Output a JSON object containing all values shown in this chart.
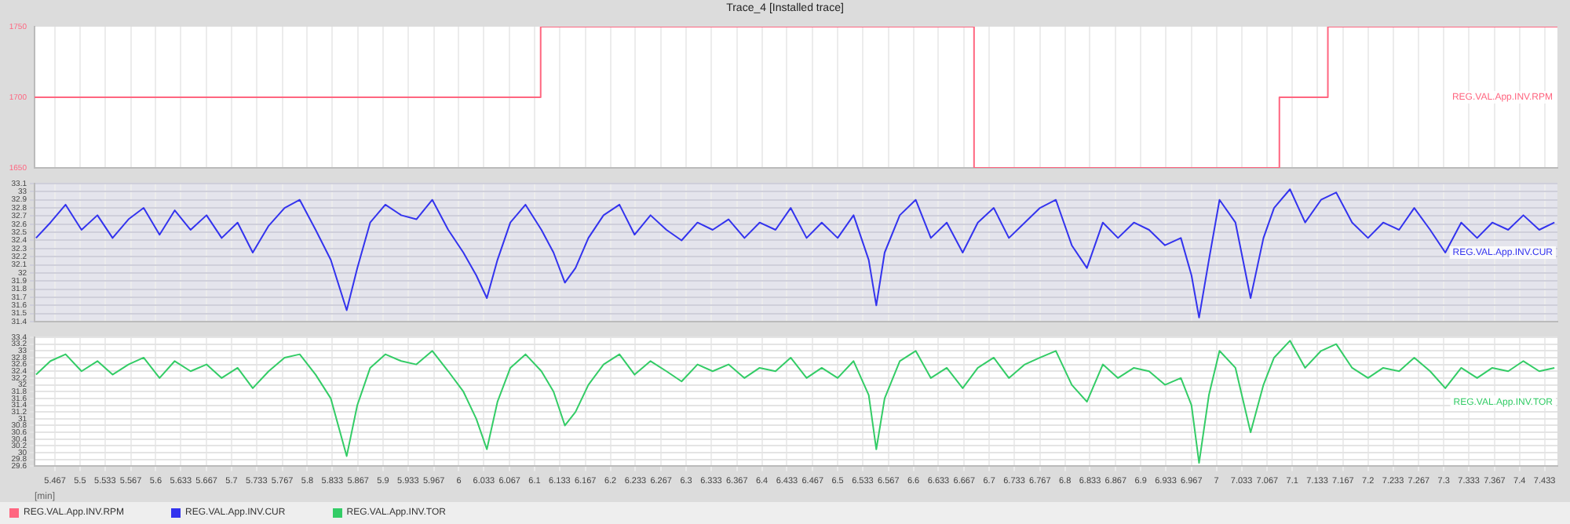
{
  "chart_data": [
    {
      "type": "step",
      "title": "Trace_4 [Installed trace]",
      "xlim": [
        5.44,
        7.45
      ],
      "xticks": [
        5.467,
        5.5,
        5.533,
        5.567,
        5.6,
        5.633,
        5.667,
        5.7,
        5.733,
        5.767,
        5.8,
        5.833,
        5.867,
        5.9,
        5.933,
        5.967,
        6,
        6.033,
        6.067,
        6.1,
        6.133,
        6.167,
        6.2,
        6.233,
        6.267,
        6.3,
        6.333,
        6.367,
        6.4,
        6.433,
        6.467,
        6.5,
        6.533,
        6.567,
        6.6,
        6.633,
        6.667,
        6.7,
        6.733,
        6.767,
        6.8,
        6.833,
        6.867,
        6.9,
        6.933,
        6.967,
        7,
        7.033,
        7.067,
        7.1,
        7.133,
        7.167,
        7.2,
        7.233,
        7.267,
        7.3,
        7.333,
        7.367,
        7.4,
        7.433
      ],
      "ylim": [
        1650,
        1750
      ],
      "yticks": [
        1650,
        1700,
        1750
      ],
      "grid": "x",
      "tick_labels": "y",
      "legend": "bottom",
      "series": [
        {
          "name": "REG.VAL.App.INV.RPM",
          "color": "#ff6680",
          "x": [
            5.44,
            6.108,
            6.68,
            7.083,
            7.147,
            7.45
          ],
          "values": [
            1700,
            1750,
            1650,
            1700,
            1750,
            1750
          ]
        }
      ]
    },
    {
      "type": "line",
      "xlim": [
        5.44,
        7.45
      ],
      "xticks": [
        5.467,
        5.5,
        5.533,
        5.567,
        5.6,
        5.633,
        5.667,
        5.7,
        5.733,
        5.767,
        5.8,
        5.833,
        5.867,
        5.9,
        5.933,
        5.967,
        6,
        6.033,
        6.067,
        6.1,
        6.133,
        6.167,
        6.2,
        6.233,
        6.267,
        6.3,
        6.333,
        6.367,
        6.4,
        6.433,
        6.467,
        6.5,
        6.533,
        6.567,
        6.6,
        6.633,
        6.667,
        6.7,
        6.733,
        6.767,
        6.8,
        6.833,
        6.867,
        6.9,
        6.933,
        6.967,
        7,
        7.033,
        7.067,
        7.1,
        7.133,
        7.167,
        7.2,
        7.233,
        7.267,
        7.3,
        7.333,
        7.367,
        7.4,
        7.433
      ],
      "ylim": [
        31.4,
        33.1
      ],
      "yticks": [
        31.4,
        31.5,
        31.6,
        31.7,
        31.8,
        31.9,
        32,
        32.1,
        32.2,
        32.3,
        32.4,
        32.5,
        32.6,
        32.7,
        32.8,
        32.9,
        33,
        33.1
      ],
      "grid": true,
      "tick_labels": "y",
      "legend": "bottom",
      "series": [
        {
          "name": "REG.VAL.App.INV.CUR",
          "color": "#3333ee",
          "x": [
            5.442,
            5.461,
            5.481,
            5.502,
            5.523,
            5.543,
            5.564,
            5.584,
            5.605,
            5.625,
            5.646,
            5.667,
            5.687,
            5.708,
            5.728,
            5.749,
            5.77,
            5.79,
            5.811,
            5.831,
            5.852,
            5.866,
            5.883,
            5.903,
            5.924,
            5.944,
            5.965,
            5.986,
            6.006,
            6.023,
            6.037,
            6.051,
            6.068,
            6.088,
            6.109,
            6.125,
            6.14,
            6.154,
            6.171,
            6.191,
            6.212,
            6.232,
            6.253,
            6.274,
            6.294,
            6.315,
            6.335,
            6.356,
            6.377,
            6.397,
            6.418,
            6.438,
            6.459,
            6.479,
            6.5,
            6.521,
            6.541,
            6.551,
            6.562,
            6.582,
            6.603,
            6.623,
            6.644,
            6.665,
            6.685,
            6.706,
            6.726,
            6.747,
            6.767,
            6.788,
            6.809,
            6.829,
            6.85,
            6.87,
            6.891,
            6.911,
            6.932,
            6.953,
            6.967,
            6.977,
            6.99,
            7.004,
            7.025,
            7.045,
            7.062,
            7.076,
            7.097,
            7.117,
            7.138,
            7.158,
            7.179,
            7.2,
            7.22,
            7.241,
            7.261,
            7.282,
            7.302,
            7.323,
            7.344,
            7.364,
            7.385,
            7.405,
            7.426,
            7.446
          ],
          "values": [
            32.43,
            32.62,
            32.84,
            32.53,
            32.71,
            32.43,
            32.66,
            32.8,
            32.47,
            32.77,
            32.53,
            32.71,
            32.43,
            32.62,
            32.25,
            32.58,
            32.8,
            32.9,
            32.53,
            32.16,
            31.54,
            32.06,
            32.62,
            32.84,
            32.71,
            32.66,
            32.9,
            32.53,
            32.25,
            31.97,
            31.69,
            32.16,
            32.62,
            32.84,
            32.53,
            32.25,
            31.88,
            32.06,
            32.43,
            32.71,
            32.84,
            32.47,
            32.71,
            32.53,
            32.4,
            32.62,
            32.53,
            32.66,
            32.43,
            32.62,
            32.53,
            32.8,
            32.43,
            32.62,
            32.43,
            32.71,
            32.16,
            31.6,
            32.25,
            32.71,
            32.9,
            32.43,
            32.62,
            32.25,
            32.62,
            32.8,
            32.43,
            32.62,
            32.8,
            32.9,
            32.34,
            32.06,
            32.62,
            32.43,
            32.62,
            32.53,
            32.34,
            32.43,
            31.97,
            31.45,
            32.16,
            32.9,
            32.62,
            31.69,
            32.43,
            32.8,
            33.03,
            32.62,
            32.9,
            32.99,
            32.62,
            32.43,
            32.62,
            32.53,
            32.8,
            32.53,
            32.25,
            32.62,
            32.43,
            32.62,
            32.53,
            32.71,
            32.53,
            32.62
          ]
        }
      ]
    },
    {
      "type": "line",
      "xlabel": "[min]",
      "xlim": [
        5.44,
        7.45
      ],
      "xticks": [
        5.467,
        5.5,
        5.533,
        5.567,
        5.6,
        5.633,
        5.667,
        5.7,
        5.733,
        5.767,
        5.8,
        5.833,
        5.867,
        5.9,
        5.933,
        5.967,
        6,
        6.033,
        6.067,
        6.1,
        6.133,
        6.167,
        6.2,
        6.233,
        6.267,
        6.3,
        6.333,
        6.367,
        6.4,
        6.433,
        6.467,
        6.5,
        6.533,
        6.567,
        6.6,
        6.633,
        6.667,
        6.7,
        6.733,
        6.767,
        6.8,
        6.833,
        6.867,
        6.9,
        6.933,
        6.967,
        7,
        7.033,
        7.067,
        7.1,
        7.133,
        7.167,
        7.2,
        7.233,
        7.267,
        7.3,
        7.333,
        7.367,
        7.4,
        7.433
      ],
      "ylim": [
        29.6,
        33.4
      ],
      "yticks": [
        29.6,
        29.8,
        30,
        30.2,
        30.4,
        30.6,
        30.8,
        31,
        31.2,
        31.4,
        31.6,
        31.8,
        32,
        32.2,
        32.4,
        32.6,
        32.8,
        33,
        33.2,
        33.4
      ],
      "grid": true,
      "legend": "bottom",
      "series": [
        {
          "name": "REG.VAL.App.INV.TOR",
          "color": "#33cc66",
          "x": [
            5.442,
            5.461,
            5.481,
            5.502,
            5.523,
            5.543,
            5.564,
            5.584,
            5.605,
            5.625,
            5.646,
            5.667,
            5.687,
            5.708,
            5.728,
            5.749,
            5.77,
            5.79,
            5.811,
            5.831,
            5.852,
            5.866,
            5.883,
            5.903,
            5.924,
            5.944,
            5.965,
            5.986,
            6.006,
            6.023,
            6.037,
            6.051,
            6.068,
            6.088,
            6.109,
            6.125,
            6.14,
            6.154,
            6.171,
            6.191,
            6.212,
            6.232,
            6.253,
            6.274,
            6.294,
            6.315,
            6.335,
            6.356,
            6.377,
            6.397,
            6.418,
            6.438,
            6.459,
            6.479,
            6.5,
            6.521,
            6.541,
            6.551,
            6.562,
            6.582,
            6.603,
            6.623,
            6.644,
            6.665,
            6.685,
            6.706,
            6.726,
            6.747,
            6.767,
            6.788,
            6.809,
            6.829,
            6.85,
            6.87,
            6.891,
            6.911,
            6.932,
            6.953,
            6.967,
            6.977,
            6.99,
            7.004,
            7.025,
            7.045,
            7.062,
            7.076,
            7.097,
            7.117,
            7.138,
            7.158,
            7.179,
            7.2,
            7.22,
            7.241,
            7.261,
            7.282,
            7.302,
            7.323,
            7.344,
            7.364,
            7.385,
            7.405,
            7.426,
            7.446
          ],
          "values": [
            32.3,
            32.7,
            32.9,
            32.4,
            32.7,
            32.3,
            32.6,
            32.8,
            32.2,
            32.7,
            32.4,
            32.6,
            32.2,
            32.5,
            31.9,
            32.4,
            32.8,
            32.9,
            32.3,
            31.6,
            29.9,
            31.4,
            32.5,
            32.9,
            32.7,
            32.6,
            33.0,
            32.4,
            31.8,
            31.0,
            30.1,
            31.5,
            32.5,
            32.9,
            32.4,
            31.8,
            30.8,
            31.2,
            32.0,
            32.6,
            32.9,
            32.3,
            32.7,
            32.4,
            32.1,
            32.6,
            32.4,
            32.6,
            32.2,
            32.5,
            32.4,
            32.8,
            32.2,
            32.5,
            32.2,
            32.7,
            31.7,
            30.1,
            31.6,
            32.7,
            33.0,
            32.2,
            32.5,
            31.9,
            32.5,
            32.8,
            32.2,
            32.6,
            32.8,
            33.0,
            32.0,
            31.5,
            32.6,
            32.2,
            32.5,
            32.4,
            32.0,
            32.2,
            31.4,
            29.7,
            31.7,
            33.0,
            32.5,
            30.6,
            32.0,
            32.8,
            33.3,
            32.5,
            33.0,
            33.2,
            32.5,
            32.2,
            32.5,
            32.4,
            32.8,
            32.4,
            31.9,
            32.5,
            32.2,
            32.5,
            32.4,
            32.7,
            32.4,
            32.5
          ]
        }
      ]
    }
  ]
}
